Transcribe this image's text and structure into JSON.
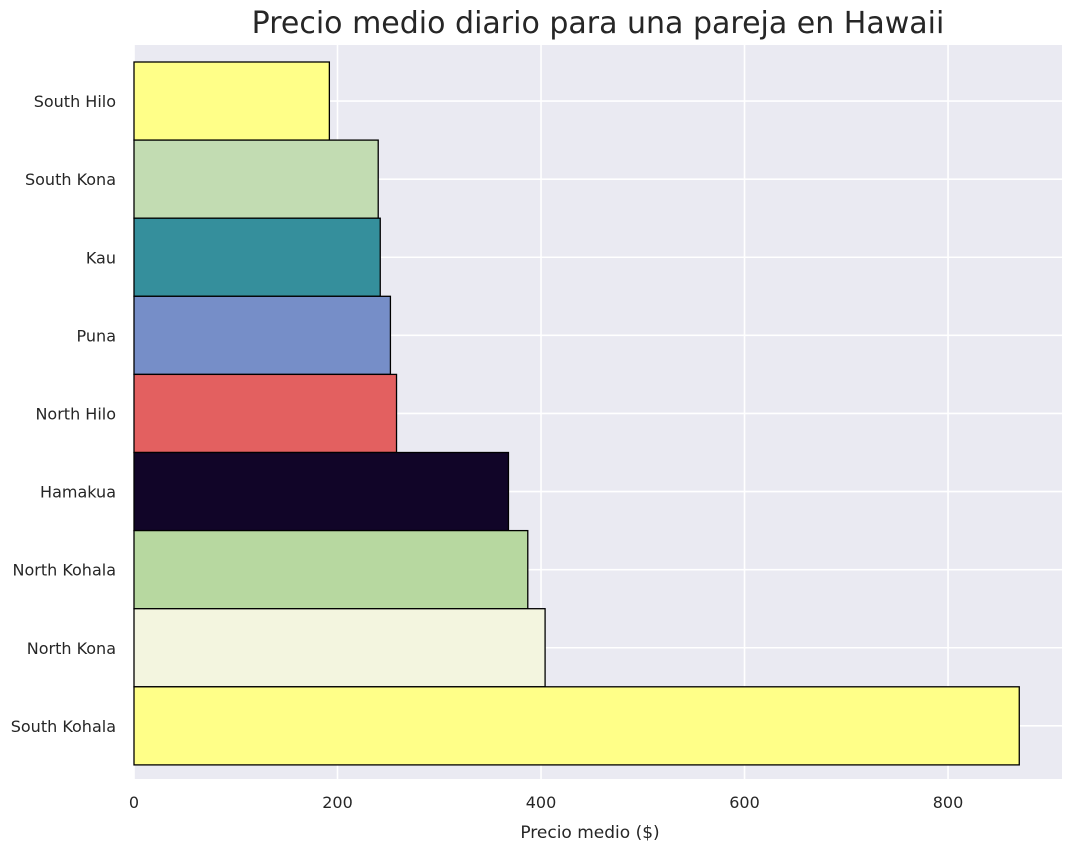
{
  "chart_data": {
    "type": "bar",
    "orientation": "horizontal",
    "title": "Precio medio diario para una pareja en Hawaii",
    "xlabel": "Precio medio ($)",
    "ylabel": "",
    "categories": [
      "South Hilo",
      "South Kona",
      "Kau",
      "Puna",
      "North Hilo",
      "Hamakua",
      "North Kohala",
      "North Kona",
      "South Kohala"
    ],
    "values": [
      192,
      240,
      242,
      252,
      258,
      368,
      387,
      404,
      870
    ],
    "colors": [
      "#ffff88",
      "#c2dcb2",
      "#358f9c",
      "#768ec8",
      "#e36060",
      "#110528",
      "#b7d8a0",
      "#f3f5df",
      "#ffff88"
    ],
    "xlim": [
      0,
      912
    ],
    "xticks": [
      "0",
      "200",
      "400",
      "600",
      "800"
    ],
    "grid": true,
    "background": "#eaeaf2",
    "bar_edge_color": "#000000"
  }
}
